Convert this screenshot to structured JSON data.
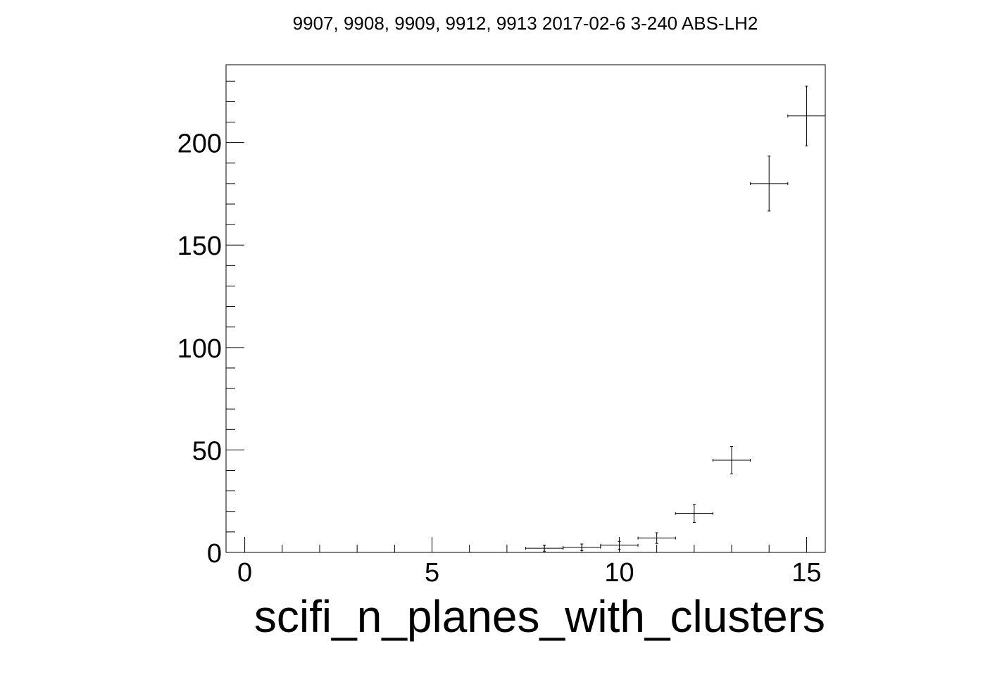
{
  "chart_data": {
    "type": "scatter",
    "title": "9907, 9908, 9909, 9912, 9913 2017-02-6 3-240 ABS-LH2",
    "xlabel": "scifi_n_planes_with_clusters",
    "ylabel": "",
    "xlim": [
      -0.5,
      15.5
    ],
    "ylim": [
      0,
      238
    ],
    "xticks": [
      0,
      5,
      10,
      15
    ],
    "yticks": [
      0,
      50,
      100,
      150,
      200
    ],
    "grid": false,
    "legend": "none",
    "x_bin_halfwidth": 0.5,
    "series": [
      {
        "x": [
          8,
          9,
          10,
          11,
          12,
          13,
          14,
          15
        ],
        "values": [
          2,
          2.5,
          3.5,
          7,
          19,
          45,
          180,
          213
        ],
        "errors": [
          1.4,
          1.6,
          1.9,
          2.6,
          4.4,
          6.7,
          13.4,
          14.6
        ]
      }
    ]
  },
  "colors": {
    "axes": "#000000",
    "markers": "#000000",
    "background": "#ffffff"
  }
}
